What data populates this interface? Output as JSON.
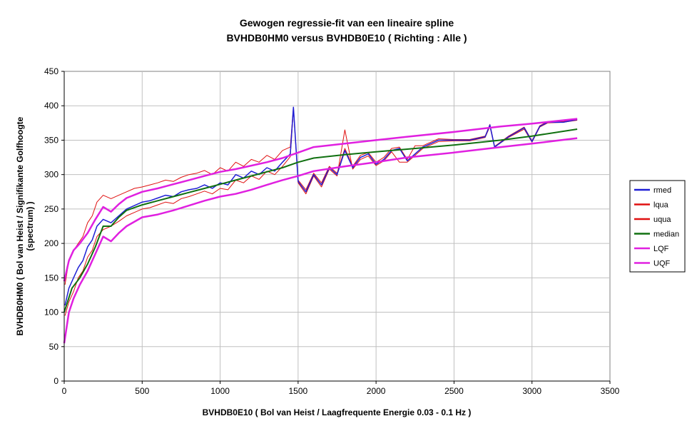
{
  "chart_data": {
    "type": "line",
    "title": "Gewogen regressie-fit van een lineaire spline",
    "subtitle": "BVHDB0HM0 versus BVHDB0E10 ( Richting : Alle )",
    "xlabel": "BVHDB0E10 ( Bol van Heist / Laagfrequente Energie 0.03 - 0.1 Hz )",
    "ylabel_line1": "BVHDB0HM0 ( Bol van Heist / Signifikante Golfhoogte",
    "ylabel_line2": "(spectrum) )",
    "xlim": [
      0,
      3500
    ],
    "ylim": [
      0,
      450
    ],
    "xticks": [
      0,
      500,
      1000,
      1500,
      2000,
      2500,
      3000,
      3500
    ],
    "yticks": [
      0,
      50,
      100,
      150,
      200,
      250,
      300,
      350,
      400,
      450
    ],
    "grid": true,
    "legend_position": "right",
    "series": [
      {
        "name": "rmed",
        "color": "#1f1fd6",
        "x": [
          5,
          30,
          60,
          90,
          120,
          150,
          180,
          210,
          250,
          300,
          350,
          400,
          450,
          500,
          550,
          600,
          650,
          700,
          750,
          800,
          850,
          900,
          950,
          1000,
          1050,
          1100,
          1150,
          1200,
          1250,
          1300,
          1350,
          1400,
          1450,
          1470,
          1500,
          1550,
          1600,
          1650,
          1700,
          1750,
          1800,
          1850,
          1900,
          1950,
          2000,
          2050,
          2100,
          2150,
          2200,
          2250,
          2300,
          2400,
          2500,
          2600,
          2700,
          2730,
          2760,
          2850,
          2950,
          3000,
          3050,
          3100,
          3200,
          3290
        ],
        "y": [
          110,
          135,
          150,
          165,
          175,
          195,
          205,
          225,
          235,
          230,
          240,
          250,
          255,
          260,
          262,
          266,
          270,
          268,
          275,
          278,
          280,
          285,
          280,
          288,
          285,
          300,
          295,
          305,
          300,
          310,
          305,
          318,
          330,
          398,
          290,
          275,
          300,
          285,
          310,
          300,
          335,
          310,
          325,
          330,
          315,
          322,
          335,
          338,
          320,
          330,
          340,
          350,
          350,
          350,
          355,
          372,
          340,
          355,
          368,
          348,
          370,
          376,
          376,
          380
        ]
      },
      {
        "name": "lqua",
        "color": "#e01010",
        "x": [
          5,
          30,
          60,
          90,
          120,
          150,
          180,
          210,
          250,
          300,
          350,
          400,
          450,
          500,
          550,
          600,
          650,
          700,
          750,
          800,
          850,
          900,
          950,
          1000,
          1050,
          1100,
          1150,
          1200,
          1250,
          1300,
          1350,
          1400,
          1450,
          1470,
          1500,
          1550,
          1600,
          1650,
          1700,
          1750,
          1800,
          1850,
          1900,
          1950,
          2000,
          2050,
          2100,
          2150,
          2200,
          2250,
          2300,
          2400,
          2500,
          2600,
          2700,
          2730,
          2760,
          2850,
          2950,
          3000,
          3050,
          3100,
          3200,
          3290
        ],
        "y": [
          95,
          115,
          130,
          150,
          160,
          180,
          190,
          210,
          220,
          225,
          232,
          240,
          245,
          250,
          252,
          256,
          260,
          258,
          265,
          268,
          272,
          276,
          272,
          280,
          278,
          292,
          288,
          298,
          293,
          305,
          300,
          312,
          326,
          395,
          288,
          272,
          298,
          282,
          308,
          298,
          365,
          308,
          322,
          327,
          313,
          320,
          333,
          318,
          318,
          328,
          338,
          348,
          349,
          349,
          354,
          370,
          340,
          354,
          366,
          347,
          369,
          375,
          376,
          379
        ]
      },
      {
        "name": "uqua",
        "color": "#e01010",
        "x": [
          5,
          30,
          60,
          90,
          120,
          150,
          180,
          210,
          250,
          300,
          350,
          400,
          450,
          500,
          550,
          600,
          650,
          700,
          750,
          800,
          850,
          900,
          950,
          1000,
          1050,
          1100,
          1150,
          1200,
          1250,
          1300,
          1350,
          1400,
          1450,
          1470,
          1500,
          1550,
          1600,
          1650,
          1700,
          1750,
          1800,
          1850,
          1900,
          1950,
          2000,
          2050,
          2100,
          2150,
          2200,
          2250,
          2300,
          2400,
          2500,
          2600,
          2700,
          2730,
          2760,
          2850,
          2950,
          3000,
          3050,
          3100,
          3200,
          3290
        ],
        "y": [
          140,
          175,
          190,
          200,
          210,
          230,
          240,
          260,
          270,
          265,
          270,
          275,
          280,
          282,
          285,
          288,
          292,
          290,
          296,
          300,
          302,
          306,
          300,
          310,
          305,
          318,
          312,
          322,
          318,
          328,
          322,
          335,
          340,
          398,
          292,
          278,
          302,
          288,
          312,
          302,
          338,
          312,
          328,
          332,
          318,
          325,
          338,
          340,
          322,
          342,
          342,
          352,
          351,
          351,
          356,
          373,
          341,
          356,
          369,
          349,
          371,
          377,
          377,
          381
        ]
      },
      {
        "name": "median",
        "color": "#107010",
        "x": [
          0,
          50,
          100,
          150,
          200,
          250,
          300,
          350,
          400,
          500,
          600,
          700,
          800,
          900,
          1000,
          1100,
          1200,
          1300,
          1400,
          1500,
          1600,
          1800,
          2000,
          2200,
          2500,
          2800,
          3000,
          3290
        ],
        "y": [
          100,
          135,
          150,
          170,
          195,
          225,
          225,
          238,
          248,
          256,
          262,
          268,
          274,
          280,
          286,
          292,
          298,
          304,
          310,
          318,
          324,
          329,
          333,
          337,
          343,
          350,
          356,
          366
        ]
      },
      {
        "name": "LQF",
        "color": "#e020e0",
        "x": [
          0,
          30,
          60,
          100,
          150,
          200,
          250,
          300,
          350,
          400,
          500,
          600,
          700,
          800,
          900,
          1000,
          1100,
          1200,
          1300,
          1400,
          1500,
          1600,
          1800,
          2000,
          2200,
          2500,
          2800,
          3000,
          3290
        ],
        "y": [
          55,
          100,
          120,
          140,
          160,
          185,
          210,
          203,
          215,
          225,
          238,
          242,
          248,
          255,
          262,
          268,
          272,
          278,
          285,
          292,
          298,
          305,
          312,
          318,
          325,
          332,
          340,
          345,
          353
        ]
      },
      {
        "name": "UQF",
        "color": "#e020e0",
        "x": [
          0,
          30,
          60,
          100,
          150,
          200,
          250,
          300,
          350,
          400,
          500,
          600,
          700,
          800,
          900,
          1000,
          1100,
          1200,
          1300,
          1400,
          1500,
          1600,
          1800,
          2000,
          2200,
          2500,
          2800,
          3000,
          3290
        ],
        "y": [
          145,
          175,
          190,
          200,
          215,
          235,
          253,
          246,
          257,
          266,
          275,
          280,
          286,
          292,
          298,
          304,
          308,
          313,
          318,
          324,
          332,
          340,
          345,
          350,
          355,
          362,
          370,
          374,
          381
        ]
      }
    ]
  }
}
